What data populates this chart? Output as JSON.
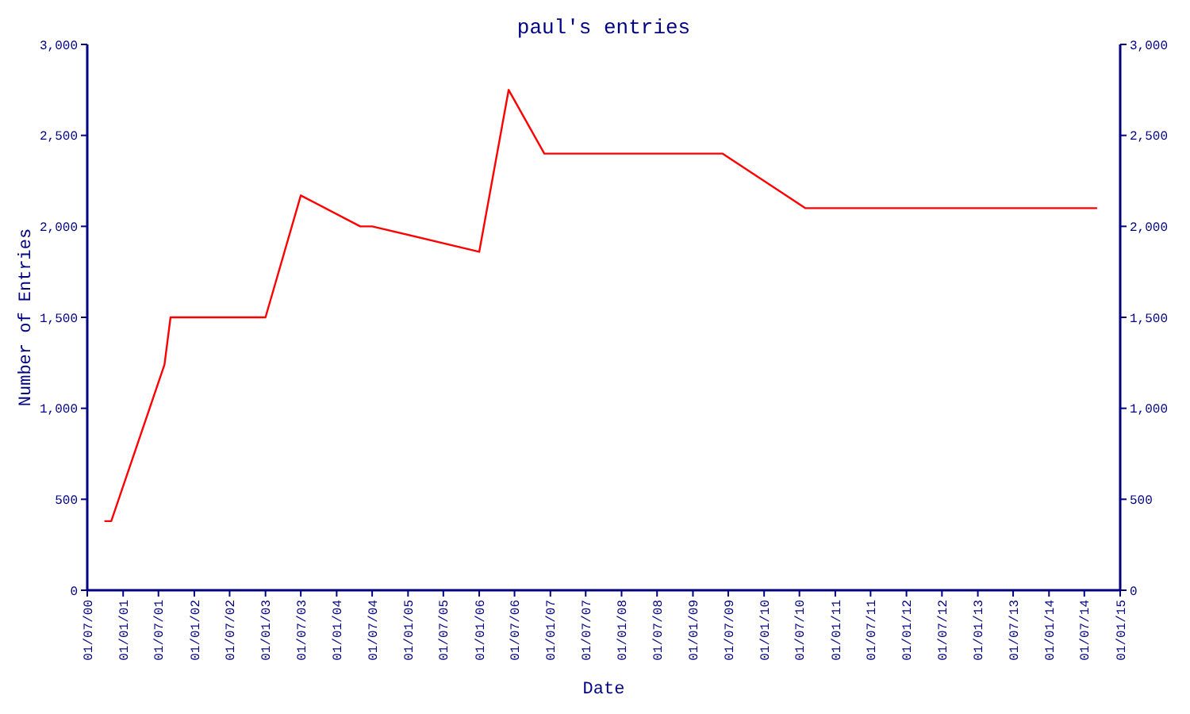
{
  "chart_data": {
    "type": "line",
    "title": "paul's entries",
    "xlabel": "Date",
    "ylabel": "Number of Entries",
    "x": [
      "2000-10",
      "2000-11",
      "2001-08",
      "2001-09",
      "2003-01",
      "2003-07",
      "2004-05",
      "2004-07",
      "2006-01",
      "2006-06",
      "2006-12",
      "2009-06",
      "2010-08",
      "2014-09"
    ],
    "series": [
      {
        "color": "#ff0000",
        "values": [
          380,
          380,
          1240,
          1500,
          1500,
          2170,
          2000,
          2000,
          1860,
          2750,
          2400,
          2400,
          2100,
          2100
        ]
      }
    ],
    "xlim": [
      "2000-07",
      "2015-01"
    ],
    "xticks": [
      {
        "value": "2000-07",
        "label": "01/07/00"
      },
      {
        "value": "2001-01",
        "label": "01/01/01"
      },
      {
        "value": "2001-07",
        "label": "01/07/01"
      },
      {
        "value": "2002-01",
        "label": "01/01/02"
      },
      {
        "value": "2002-07",
        "label": "01/07/02"
      },
      {
        "value": "2003-01",
        "label": "01/01/03"
      },
      {
        "value": "2003-07",
        "label": "01/07/03"
      },
      {
        "value": "2004-01",
        "label": "01/01/04"
      },
      {
        "value": "2004-07",
        "label": "01/07/04"
      },
      {
        "value": "2005-01",
        "label": "01/01/05"
      },
      {
        "value": "2005-07",
        "label": "01/07/05"
      },
      {
        "value": "2006-01",
        "label": "01/01/06"
      },
      {
        "value": "2006-07",
        "label": "01/07/06"
      },
      {
        "value": "2007-01",
        "label": "01/01/07"
      },
      {
        "value": "2007-07",
        "label": "01/07/07"
      },
      {
        "value": "2008-01",
        "label": "01/01/08"
      },
      {
        "value": "2008-07",
        "label": "01/07/08"
      },
      {
        "value": "2009-01",
        "label": "01/01/09"
      },
      {
        "value": "2009-07",
        "label": "01/07/09"
      },
      {
        "value": "2010-01",
        "label": "01/01/10"
      },
      {
        "value": "2010-07",
        "label": "01/07/10"
      },
      {
        "value": "2011-01",
        "label": "01/01/11"
      },
      {
        "value": "2011-07",
        "label": "01/07/11"
      },
      {
        "value": "2012-01",
        "label": "01/01/12"
      },
      {
        "value": "2012-07",
        "label": "01/07/12"
      },
      {
        "value": "2013-01",
        "label": "01/01/13"
      },
      {
        "value": "2013-07",
        "label": "01/07/13"
      },
      {
        "value": "2014-01",
        "label": "01/01/14"
      },
      {
        "value": "2014-07",
        "label": "01/07/14"
      },
      {
        "value": "2015-01",
        "label": "01/01/15"
      }
    ],
    "ylim": [
      0,
      3000
    ],
    "yticks": [
      0,
      500,
      {
        "value": 1000,
        "label": "1,000"
      },
      {
        "value": 1500,
        "label": "1,500"
      },
      {
        "value": 2000,
        "label": "2,000"
      },
      {
        "value": 2500,
        "label": "2,500"
      },
      {
        "value": 3000,
        "label": "3,000"
      }
    ],
    "y2lim": [
      0,
      3000
    ],
    "y2ticks": [
      0,
      500,
      {
        "value": 1000,
        "label": "1,000"
      },
      {
        "value": 1500,
        "label": "1,500"
      },
      {
        "value": 2000,
        "label": "2,000"
      },
      {
        "value": 2500,
        "label": "2,500"
      },
      {
        "value": 3000,
        "label": "3,000"
      }
    ],
    "marker": "none",
    "line_style": "solid"
  }
}
